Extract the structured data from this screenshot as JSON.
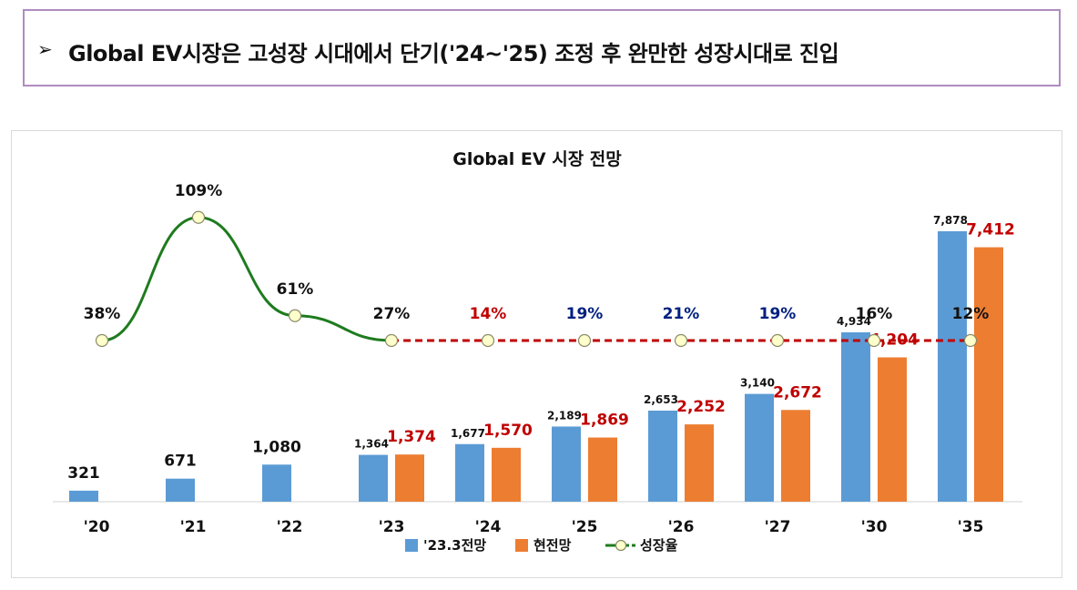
{
  "headline": {
    "bullet": "➢",
    "text": "Global EV시장은 고성장 시대에서 단기('24~'25) 조정 후 완만한 성장시대로 진입"
  },
  "chart_data": {
    "type": "bar",
    "title": "Global EV 시장 전망",
    "categories": [
      "'20",
      "'21",
      "'22",
      "'23",
      "'24",
      "'25",
      "'26",
      "'27",
      "'30",
      "'35"
    ],
    "series": [
      {
        "name": "'23.3전망",
        "color": "#5b9bd5",
        "values": [
          321,
          671,
          1080,
          1364,
          1677,
          2189,
          2653,
          3140,
          4934,
          7878
        ],
        "labels": [
          "321",
          "671",
          "1,080",
          "1,364",
          "1,677",
          "2,189",
          "2,653",
          "3,140",
          "4,934",
          "7,878"
        ]
      },
      {
        "name": "현전망",
        "color": "#ed7d31",
        "label_color": "#c00000",
        "values": [
          null,
          null,
          null,
          1374,
          1570,
          1869,
          2252,
          2672,
          4204,
          7412
        ],
        "labels": [
          null,
          null,
          null,
          "1,374",
          "1,570",
          "1,869",
          "2,252",
          "2,672",
          "4,204",
          "7,412"
        ]
      }
    ],
    "growth_rate": {
      "name": "성장율",
      "values": [
        38,
        109,
        61,
        27,
        14,
        19,
        21,
        19,
        16,
        12
      ],
      "labels": [
        "38%",
        "109%",
        "61%",
        "27%",
        "14%",
        "19%",
        "21%",
        "19%",
        "16%",
        "12%"
      ],
      "actual_color": "#1e7b1e",
      "forecast_color": "#c00000",
      "marker_color": "#ffffcc",
      "label_colors": [
        "#111111",
        "#111111",
        "#111111",
        "#111111",
        "#c00000",
        "#002080",
        "#002080",
        "#002080",
        "#111111",
        "#111111"
      ]
    },
    "legend_position": "bottom",
    "grid": false
  }
}
